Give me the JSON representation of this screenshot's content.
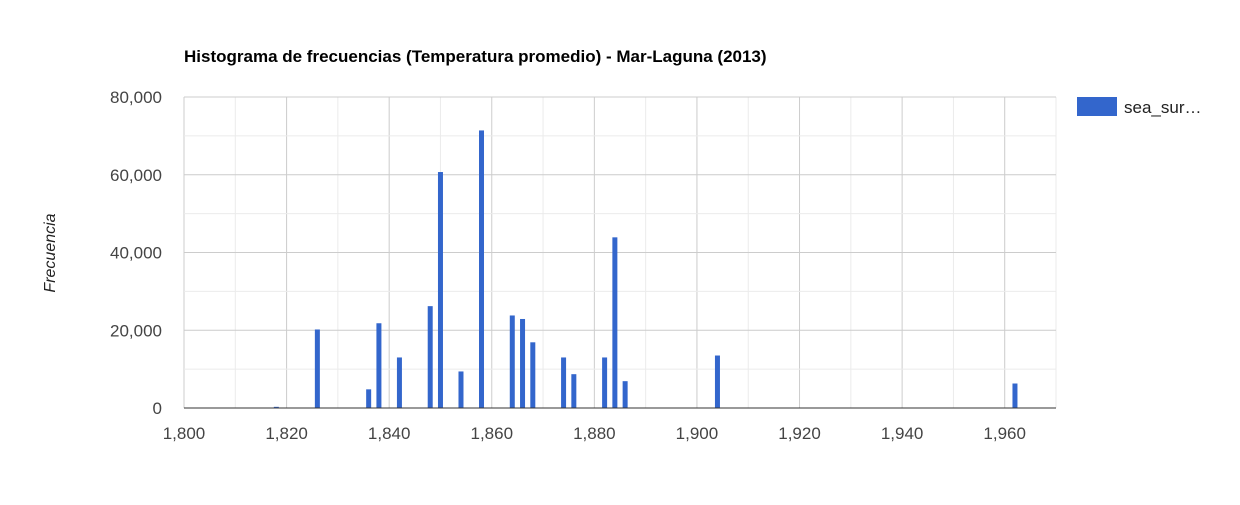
{
  "chart_data": {
    "type": "bar",
    "title": "Histograma de frecuencias (Temperatura promedio) - Mar-Laguna (2013)",
    "xlabel": "",
    "ylabel": "Frecuencia",
    "xlim": [
      1800,
      1970
    ],
    "ylim": [
      0,
      80000
    ],
    "x_ticks": [
      "1,800",
      "1,820",
      "1,840",
      "1,860",
      "1,880",
      "1,900",
      "1,920",
      "1,940",
      "1,960"
    ],
    "y_ticks": [
      "0",
      "20,000",
      "40,000",
      "60,000",
      "80,000"
    ],
    "grid": true,
    "legend_position": "right",
    "series": [
      {
        "name": "sea_sur…",
        "color": "#3366cc",
        "x": [
          1818,
          1826,
          1836,
          1838,
          1842,
          1848,
          1850,
          1854,
          1858,
          1864,
          1866,
          1868,
          1874,
          1876,
          1882,
          1884,
          1886,
          1904,
          1962
        ],
        "values": [
          300,
          20200,
          4800,
          21800,
          13000,
          26200,
          60700,
          9400,
          71400,
          23800,
          22900,
          16900,
          13000,
          8700,
          13000,
          43900,
          6900,
          13500,
          6300
        ]
      }
    ]
  }
}
